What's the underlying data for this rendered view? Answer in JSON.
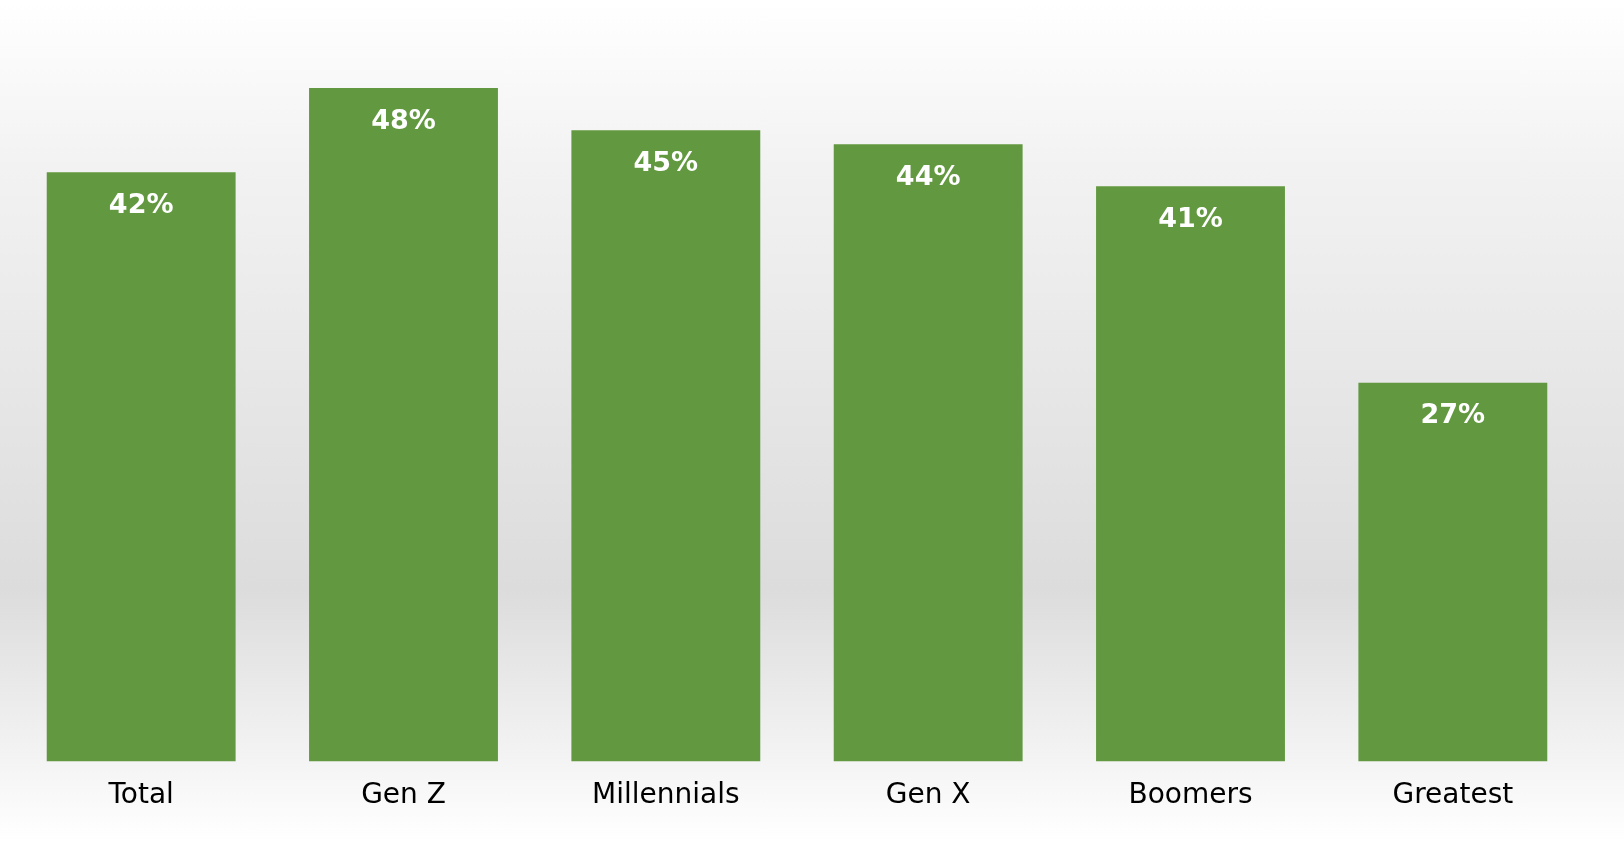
{
  "chart_data": {
    "type": "bar",
    "categories": [
      "Total",
      "Gen Z",
      "Millennials",
      "Gen X",
      "Boomers",
      "Greatest"
    ],
    "values": [
      42,
      48,
      45,
      44,
      41,
      27
    ],
    "color": "#62983f",
    "value_labels": [
      "42%",
      "48%",
      "45%",
      "44%",
      "41%",
      "27%"
    ],
    "grid": false,
    "legend": false
  }
}
